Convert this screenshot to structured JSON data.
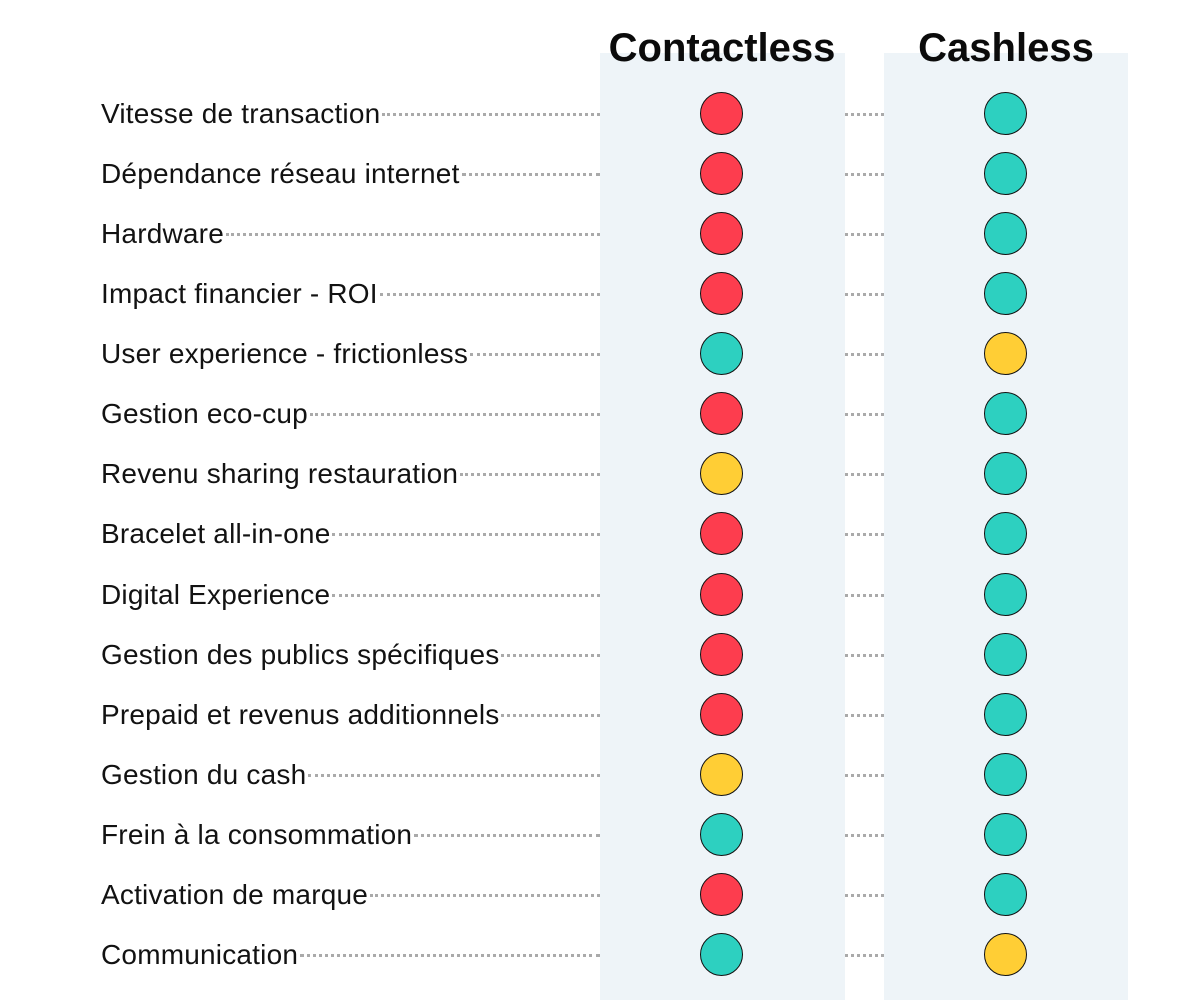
{
  "columns": {
    "contactless": "Contactless",
    "cashless": "Cashless"
  },
  "status_colors": {
    "red": "#fd3d4e",
    "green": "#2dd0c0",
    "yellow": "#ffce35"
  },
  "rows": [
    {
      "label": "Vitesse de transaction",
      "contactless": "red",
      "cashless": "green"
    },
    {
      "label": "Dépendance réseau internet",
      "contactless": "red",
      "cashless": "green"
    },
    {
      "label": "Hardware",
      "contactless": "red",
      "cashless": "green"
    },
    {
      "label": "Impact financier - ROI",
      "contactless": "red",
      "cashless": "green"
    },
    {
      "label": "User experience - frictionless",
      "contactless": "green",
      "cashless": "yellow"
    },
    {
      "label": "Gestion eco-cup",
      "contactless": "red",
      "cashless": "green"
    },
    {
      "label": "Revenu sharing restauration",
      "contactless": "yellow",
      "cashless": "green"
    },
    {
      "label": "Bracelet all-in-one",
      "contactless": "red",
      "cashless": "green"
    },
    {
      "label": "Digital Experience",
      "contactless": "red",
      "cashless": "green"
    },
    {
      "label": "Gestion des publics spécifiques",
      "contactless": "red",
      "cashless": "green"
    },
    {
      "label": "Prepaid et revenus additionnels",
      "contactless": "red",
      "cashless": "green"
    },
    {
      "label": "Gestion du cash",
      "contactless": "yellow",
      "cashless": "green"
    },
    {
      "label": "Frein à la consommation",
      "contactless": "green",
      "cashless": "green"
    },
    {
      "label": "Activation de marque",
      "contactless": "red",
      "cashless": "green"
    },
    {
      "label": "Communication",
      "contactless": "green",
      "cashless": "yellow"
    }
  ]
}
